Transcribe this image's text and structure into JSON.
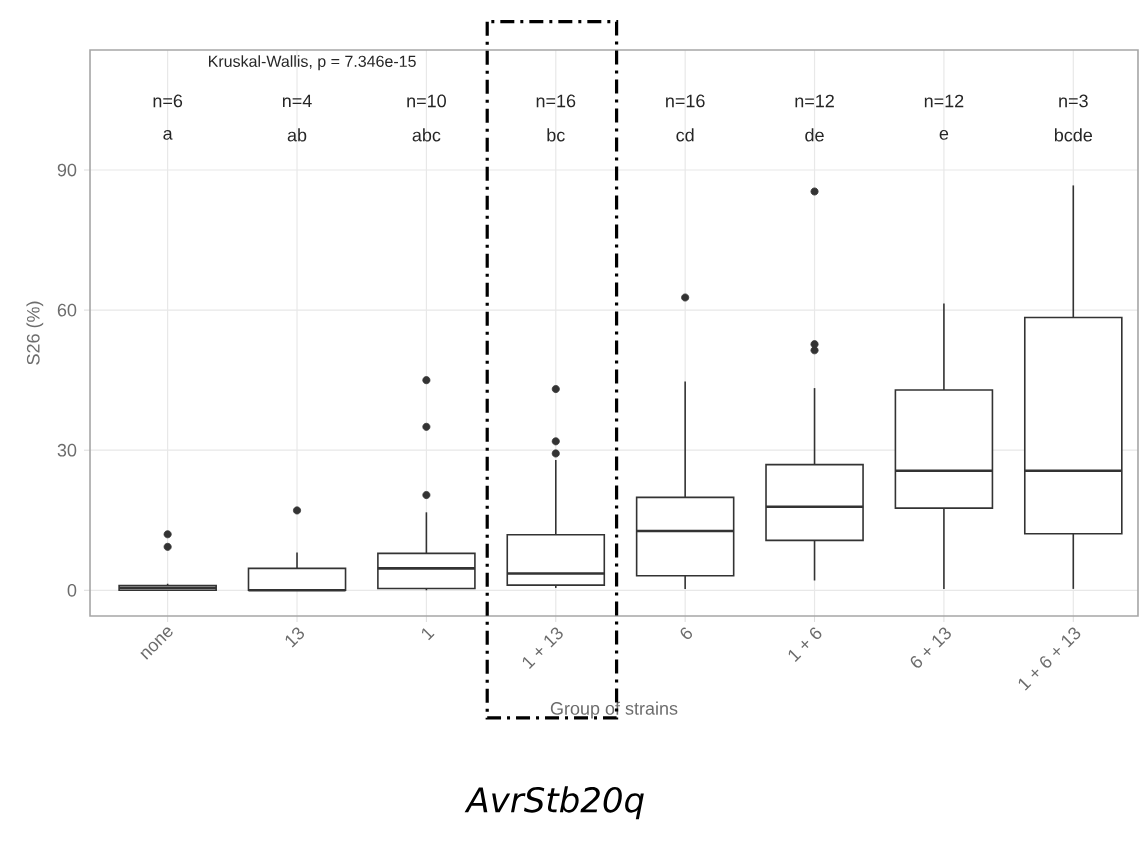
{
  "chart_data": {
    "type": "box",
    "xlabel": "Group of strains",
    "ylabel": "S26 (%)",
    "categories": [
      "none",
      "13",
      "1",
      "1 + 13",
      "6",
      "1 + 6",
      "6 + 13",
      "1 + 6 + 13"
    ],
    "boxes": [
      {
        "low": 0,
        "q1": 0,
        "median": 0.5,
        "q3": 1,
        "high": 1.4,
        "outliers": [
          12,
          9.3
        ]
      },
      {
        "low": 0,
        "q1": 0,
        "median": 0,
        "q3": 4.7,
        "high": 8.1,
        "outliers": [
          17.1
        ]
      },
      {
        "low": 0,
        "q1": 0.4,
        "median": 4.7,
        "q3": 7.9,
        "high": 16.7,
        "outliers": [
          20.4,
          35,
          45
        ]
      },
      {
        "low": 0.5,
        "q1": 1.1,
        "median": 3.6,
        "q3": 11.9,
        "high": 27.9,
        "outliers": [
          29.3,
          31.9,
          43.1
        ]
      },
      {
        "low": 0.3,
        "q1": 3.1,
        "median": 12.7,
        "q3": 19.9,
        "high": 44.7,
        "outliers": [
          62.7
        ]
      },
      {
        "low": 2.1,
        "q1": 10.7,
        "median": 17.9,
        "q3": 26.9,
        "high": 43.3,
        "outliers": [
          51.4,
          52.7,
          85.4
        ]
      },
      {
        "low": 0.3,
        "q1": 17.6,
        "median": 25.6,
        "q3": 42.9,
        "high": 61.4
      },
      {
        "low": 0.3,
        "q1": 12.1,
        "median": 25.6,
        "q3": 58.4,
        "high": 86.7
      }
    ],
    "ylim": [
      -5.5,
      115.7
    ],
    "yticks": [
      0,
      30,
      60,
      90
    ],
    "grid": true,
    "color": "#333333",
    "annotations": [
      "Kruskal-Wallis, p = 7.346e-15",
      "n=6",
      "n=4",
      "n=10",
      "n=16",
      "n=16",
      "n=12",
      "n=12",
      "n=3",
      "a",
      "ab",
      "abc",
      "bc",
      "cd",
      "de",
      "e",
      "bcde",
      "AvrStb20q"
    ]
  }
}
